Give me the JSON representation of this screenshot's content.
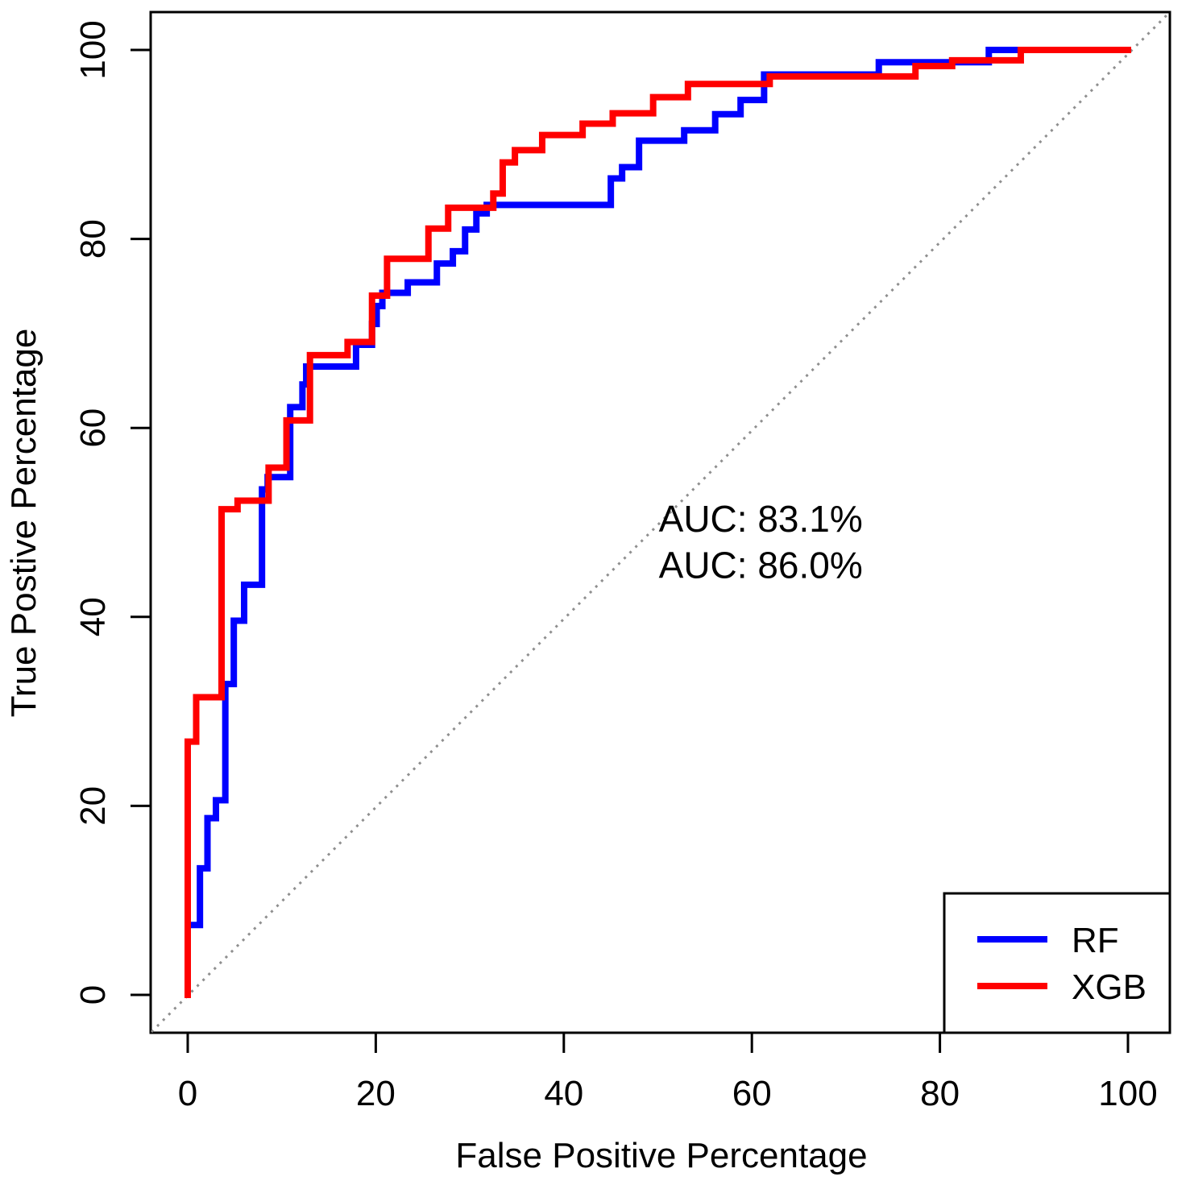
{
  "chart_data": {
    "type": "line",
    "subtype": "roc-step-curves",
    "title": "",
    "xlabel": "False Positive Percentage",
    "ylabel": "True Postive Percentage",
    "xlim": [
      0,
      100
    ],
    "ylim": [
      0,
      100
    ],
    "x_ticks": [
      0,
      20,
      40,
      60,
      80,
      100
    ],
    "y_ticks": [
      0,
      20,
      40,
      60,
      80,
      100
    ],
    "grid": false,
    "diagonal_reference": {
      "from": [
        0,
        0
      ],
      "to": [
        100,
        100
      ],
      "style": "dotted",
      "color": "#8f8f8f"
    },
    "annotations": [
      {
        "text": "AUC: 83.1%",
        "color": "#0000FF",
        "x": 50.1,
        "y": 49.0
      },
      {
        "text": "AUC: 86.0%",
        "color": "#FF0000",
        "x": 50.1,
        "y": 44.1
      }
    ],
    "legend": {
      "position": "bottom-right",
      "items": [
        {
          "label": "RF",
          "color": "#0000FF"
        },
        {
          "label": "XGB",
          "color": "#FF0000"
        }
      ]
    },
    "series": [
      {
        "name": "RF",
        "color": "#0000FF",
        "points": [
          [
            0,
            0
          ],
          [
            0,
            7.4
          ],
          [
            1.3,
            7.4
          ],
          [
            1.3,
            13.4
          ],
          [
            2.1,
            13.4
          ],
          [
            2.1,
            18.7
          ],
          [
            3,
            18.7
          ],
          [
            3,
            20.6
          ],
          [
            4,
            20.6
          ],
          [
            4,
            32.9
          ],
          [
            4.9,
            32.9
          ],
          [
            4.9,
            39.6
          ],
          [
            6,
            39.6
          ],
          [
            6,
            43.4
          ],
          [
            7.9,
            43.4
          ],
          [
            7.9,
            53.5
          ],
          [
            8.5,
            53.5
          ],
          [
            8.5,
            54.8
          ],
          [
            10.9,
            54.8
          ],
          [
            10.9,
            62.2
          ],
          [
            12.2,
            62.2
          ],
          [
            12.2,
            64.6
          ],
          [
            12.6,
            64.6
          ],
          [
            12.6,
            66.5
          ],
          [
            17.9,
            66.5
          ],
          [
            17.9,
            68.8
          ],
          [
            19.6,
            68.8
          ],
          [
            19.6,
            71
          ],
          [
            20.1,
            71
          ],
          [
            20.1,
            72.9
          ],
          [
            20.7,
            72.9
          ],
          [
            20.7,
            74.3
          ],
          [
            23.4,
            74.3
          ],
          [
            23.4,
            75.4
          ],
          [
            26.5,
            75.4
          ],
          [
            26.5,
            77.4
          ],
          [
            28.2,
            77.4
          ],
          [
            28.2,
            78.7
          ],
          [
            29.5,
            78.7
          ],
          [
            29.5,
            81
          ],
          [
            30.7,
            81
          ],
          [
            30.7,
            82.7
          ],
          [
            31.8,
            82.7
          ],
          [
            31.8,
            83.6
          ],
          [
            45,
            83.6
          ],
          [
            45,
            86.4
          ],
          [
            46.2,
            86.4
          ],
          [
            46.2,
            87.6
          ],
          [
            48,
            87.6
          ],
          [
            48,
            90.4
          ],
          [
            52.8,
            90.4
          ],
          [
            52.8,
            91.5
          ],
          [
            56.1,
            91.5
          ],
          [
            56.1,
            93.2
          ],
          [
            58.8,
            93.2
          ],
          [
            58.8,
            94.7
          ],
          [
            61.3,
            94.7
          ],
          [
            61.3,
            97.4
          ],
          [
            73.5,
            97.4
          ],
          [
            73.5,
            98.7
          ],
          [
            85.2,
            98.7
          ],
          [
            85.2,
            100
          ],
          [
            100,
            100
          ]
        ]
      },
      {
        "name": "XGB",
        "color": "#FF0000",
        "points": [
          [
            0,
            0
          ],
          [
            0,
            26.8
          ],
          [
            0.9,
            26.8
          ],
          [
            0.9,
            31.5
          ],
          [
            3.6,
            31.5
          ],
          [
            3.6,
            51.4
          ],
          [
            5.3,
            51.4
          ],
          [
            5.3,
            52.3
          ],
          [
            8.6,
            52.3
          ],
          [
            8.6,
            55.8
          ],
          [
            10.5,
            55.8
          ],
          [
            10.5,
            60.8
          ],
          [
            13,
            60.8
          ],
          [
            13,
            67.7
          ],
          [
            17,
            67.7
          ],
          [
            17,
            69.1
          ],
          [
            19.6,
            69.1
          ],
          [
            19.6,
            74
          ],
          [
            21.2,
            74
          ],
          [
            21.2,
            77.9
          ],
          [
            25.6,
            77.9
          ],
          [
            25.6,
            81.1
          ],
          [
            27.7,
            81.1
          ],
          [
            27.7,
            83.3
          ],
          [
            32.5,
            83.3
          ],
          [
            32.5,
            84.8
          ],
          [
            33.5,
            84.8
          ],
          [
            33.5,
            88.1
          ],
          [
            34.8,
            88.1
          ],
          [
            34.8,
            89.4
          ],
          [
            37.7,
            89.4
          ],
          [
            37.7,
            91
          ],
          [
            42,
            91
          ],
          [
            42,
            92.2
          ],
          [
            45.2,
            92.2
          ],
          [
            45.2,
            93.3
          ],
          [
            49.5,
            93.3
          ],
          [
            49.5,
            95
          ],
          [
            53.2,
            95
          ],
          [
            53.2,
            96.4
          ],
          [
            61.9,
            96.4
          ],
          [
            61.9,
            97.2
          ],
          [
            77.4,
            97.2
          ],
          [
            77.4,
            98.3
          ],
          [
            81.3,
            98.3
          ],
          [
            81.3,
            98.9
          ],
          [
            88.6,
            98.9
          ],
          [
            88.6,
            100
          ],
          [
            100,
            100
          ]
        ]
      }
    ]
  },
  "colors": {
    "axis": "#000000",
    "background": "#FFFFFF",
    "diagonal": "#8f8f8f",
    "rf": "#0000FF",
    "xgb": "#FF0000"
  }
}
